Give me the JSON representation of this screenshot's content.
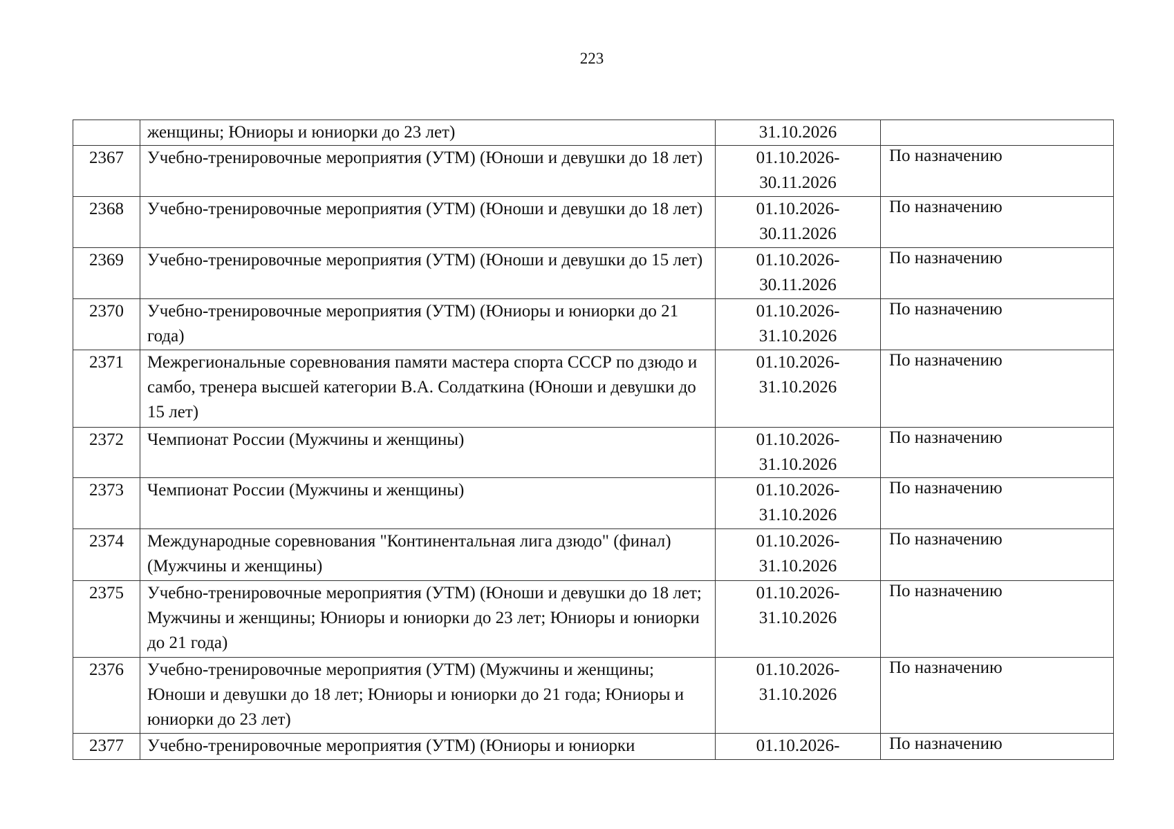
{
  "page_number": "223",
  "rows": [
    {
      "num": "",
      "name": "женщины; Юниоры и юниорки до 23 лет)",
      "dates": "31.10.2026",
      "resp": ""
    },
    {
      "num": "2367",
      "name": "Учебно-тренировочные мероприятия (УТМ) (Юноши и девушки до 18 лет)",
      "dates": "01.10.2026-30.11.2026",
      "resp": "По назначению"
    },
    {
      "num": "2368",
      "name": "Учебно-тренировочные мероприятия (УТМ) (Юноши и девушки до 18 лет)",
      "dates": "01.10.2026-30.11.2026",
      "resp": "По назначению"
    },
    {
      "num": "2369",
      "name": "Учебно-тренировочные мероприятия (УТМ) (Юноши и девушки до 15 лет)",
      "dates": "01.10.2026-30.11.2026",
      "resp": "По назначению"
    },
    {
      "num": "2370",
      "name": "Учебно-тренировочные мероприятия (УТМ) (Юниоры и юниорки до 21 года)",
      "dates": "01.10.2026-31.10.2026",
      "resp": "По назначению"
    },
    {
      "num": "2371",
      "name": "Межрегиональные соревнования памяти мастера спорта СССР по дзюдо и самбо, тренера высшей категории В.А. Солдаткина (Юноши и девушки до 15 лет)",
      "dates": "01.10.2026-31.10.2026",
      "resp": "По назначению"
    },
    {
      "num": "2372",
      "name": "Чемпионат России (Мужчины и женщины)",
      "dates": "01.10.2026-31.10.2026",
      "resp": "По назначению"
    },
    {
      "num": "2373",
      "name": "Чемпионат России (Мужчины и женщины)",
      "dates": "01.10.2026-31.10.2026",
      "resp": "По назначению"
    },
    {
      "num": "2374",
      "name": "Международные соревнования \"Континентальная лига дзюдо\" (финал) (Мужчины и женщины)",
      "dates": "01.10.2026-31.10.2026",
      "resp": "По назначению"
    },
    {
      "num": "2375",
      "name": "Учебно-тренировочные мероприятия (УТМ) (Юноши и девушки до 18 лет; Мужчины и женщины; Юниоры и юниорки до 23 лет; Юниоры и юниорки до 21 года)",
      "dates": "01.10.2026-31.10.2026",
      "resp": "По назначению"
    },
    {
      "num": "2376",
      "name": "Учебно-тренировочные мероприятия (УТМ) (Мужчины и женщины; Юноши и девушки до 18 лет; Юниоры и юниорки до 21 года; Юниоры и юниорки до 23 лет)",
      "dates": "01.10.2026-31.10.2026",
      "resp": "По назначению"
    },
    {
      "num": "2377",
      "name": "Учебно-тренировочные мероприятия (УТМ) (Юниоры и юниорки",
      "dates": "01.10.2026-",
      "resp": "По назначению"
    }
  ]
}
